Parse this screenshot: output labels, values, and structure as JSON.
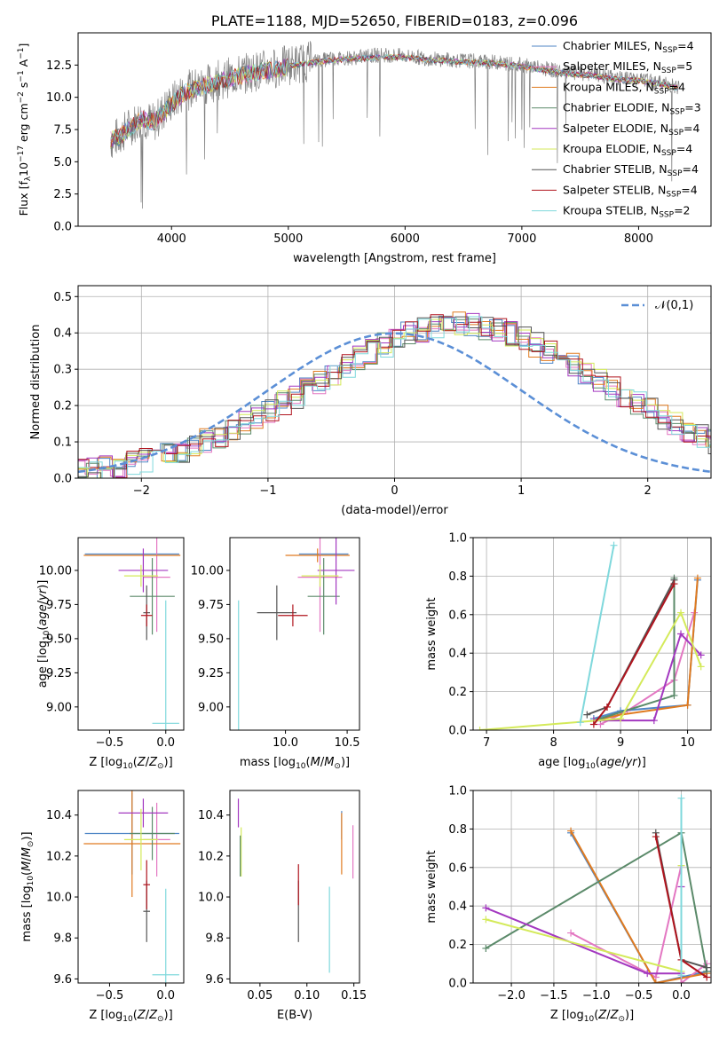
{
  "figure_title": "PLATE=1188, MJD=52650, FIBERID=0183, z=0.096",
  "colors": {
    "Chabrier MILES": "#4f86c6",
    "Salpeter MILES": "#e377c2",
    "Kroupa MILES": "#e07b20",
    "Chabrier ELODIE": "#5b8a6a",
    "Salpeter ELODIE": "#a338c0",
    "Kroupa ELODIE": "#d4ea5a",
    "Chabrier STELIB": "#555555",
    "Salpeter STELIB": "#b0141e",
    "Kroupa STELIB": "#7fd8dc"
  },
  "chart_data": [
    {
      "type": "line",
      "xlabel": "wavelength [Angstrom, rest frame]",
      "ylabel": "Flux [f_λ10^-17 erg cm^-2 s^-1 A^-1]",
      "xlim": [
        3200,
        8620
      ],
      "ylim": [
        0,
        15.0
      ],
      "xticks": [
        4000,
        5000,
        6000,
        7000,
        8000
      ],
      "yticks": [
        0.0,
        2.5,
        5.0,
        7.5,
        10.0,
        12.5
      ],
      "ytick_labels": [
        "0.0",
        "2.5",
        "5.0",
        "7.5",
        "10.0",
        "12.5"
      ],
      "grid": false,
      "legend_position": "right",
      "legend": [
        {
          "model": "Chabrier MILES",
          "label": "Chabrier MILES, N_SSP=4",
          "name": "Chabrier MILES",
          "sub": "SSP",
          "value": "=4"
        },
        {
          "model": "Salpeter MILES",
          "label": "Salpeter MILES, N_SSP=5",
          "name": "Salpeter MILES",
          "sub": "SSP",
          "value": "=5"
        },
        {
          "model": "Kroupa MILES",
          "label": "Kroupa MILES, N_SSP=4",
          "name": "Kroupa MILES",
          "sub": "SSP",
          "value": "=4"
        },
        {
          "model": "Chabrier ELODIE",
          "label": "Chabrier ELODIE, N_SSP=3",
          "name": "Chabrier ELODIE",
          "sub": "SSP",
          "value": "=3"
        },
        {
          "model": "Salpeter ELODIE",
          "label": "Salpeter ELODIE, N_SSP=4",
          "name": "Salpeter ELODIE",
          "sub": "SSP",
          "value": "=4"
        },
        {
          "model": "Kroupa ELODIE",
          "label": "Kroupa ELODIE, N_SSP=4",
          "name": "Kroupa ELODIE",
          "sub": "SSP",
          "value": "=4"
        },
        {
          "model": "Chabrier STELIB",
          "label": "Chabrier STELIB, N_SSP=4",
          "name": "Chabrier STELIB",
          "sub": "SSP",
          "value": "=4"
        },
        {
          "model": "Salpeter STELIB",
          "label": "Salpeter STELIB, N_SSP=4",
          "name": "Salpeter STELIB",
          "sub": "SSP",
          "value": "=4"
        },
        {
          "model": "Kroupa STELIB",
          "label": "Kroupa STELIB, N_SSP=2",
          "name": "Kroupa STELIB",
          "sub": "SSP",
          "value": "=2"
        }
      ],
      "observed_spectrum": {
        "color": "#808080",
        "x": [
          3480,
          3550,
          3650,
          3750,
          3850,
          3950,
          4100,
          4250,
          4400,
          4550,
          4700,
          4850,
          5000,
          5200,
          5400,
          5600,
          5800,
          6000,
          6200,
          6400,
          6600,
          6800,
          7000,
          7200,
          7400,
          7600,
          7800,
          8000,
          8200,
          8350
        ],
        "y": [
          6.6,
          7.0,
          7.8,
          8.4,
          8.0,
          9.2,
          10.4,
          10.9,
          11.3,
          11.7,
          12.0,
          12.2,
          12.5,
          12.8,
          13.0,
          13.1,
          13.3,
          13.2,
          13.0,
          12.9,
          12.8,
          12.7,
          12.5,
          12.2,
          11.9,
          11.8,
          11.5,
          11.4,
          11.1,
          10.8
        ]
      },
      "model_continuum": {
        "x": [
          3480,
          3550,
          3650,
          3750,
          3850,
          3950,
          4100,
          4250,
          4400,
          4550,
          4700,
          4850,
          5000,
          5200,
          5400,
          5600,
          5800,
          6000,
          6200,
          6400,
          6600,
          6800,
          7000,
          7200,
          7400,
          7600,
          7800,
          8000,
          8200,
          8350
        ],
        "y": [
          6.7,
          6.9,
          7.6,
          8.3,
          8.1,
          9.0,
          10.3,
          10.8,
          11.2,
          11.6,
          11.9,
          12.1,
          12.4,
          12.7,
          12.9,
          13.0,
          13.1,
          13.1,
          12.9,
          12.8,
          12.7,
          12.6,
          12.4,
          12.1,
          11.8,
          11.7,
          11.4,
          11.3,
          11.0,
          10.7
        ]
      }
    },
    {
      "type": "histogram",
      "xlabel": "(data-model)/error",
      "ylabel": "Normed distribution",
      "xlim": [
        -2.5,
        2.5
      ],
      "ylim": [
        0,
        0.53
      ],
      "xticks": [
        -2,
        -1,
        0,
        1,
        2
      ],
      "xtick_labels": [
        "−2",
        "−1",
        "0",
        "1",
        "2"
      ],
      "yticks": [
        0.0,
        0.1,
        0.2,
        0.3,
        0.4,
        0.5
      ],
      "ytick_labels": [
        "0.0",
        "0.1",
        "0.2",
        "0.3",
        "0.4",
        "0.5"
      ],
      "grid": true,
      "legend_position": "top-right",
      "legend_label": "𝒩(0,1)",
      "gaussian": {
        "mean": 0,
        "sigma": 1,
        "color": "#5b8fd6"
      },
      "bin_width": 0.1,
      "bin_start": -2.5,
      "shape": [
        0.018,
        0.022,
        0.027,
        0.033,
        0.04,
        0.048,
        0.056,
        0.066,
        0.077,
        0.089,
        0.102,
        0.117,
        0.133,
        0.149,
        0.167,
        0.186,
        0.205,
        0.225,
        0.246,
        0.267,
        0.288,
        0.309,
        0.33,
        0.349,
        0.367,
        0.383,
        0.397,
        0.408,
        0.416,
        0.422,
        0.424,
        0.422,
        0.416,
        0.408,
        0.397,
        0.383,
        0.367,
        0.349,
        0.33,
        0.309,
        0.288,
        0.267,
        0.246,
        0.225,
        0.205,
        0.186,
        0.167,
        0.149,
        0.133,
        0.117,
        0.102,
        0.089,
        0.077,
        0.066,
        0.056,
        0.048,
        0.04,
        0.033,
        0.027,
        0.022,
        0.018
      ]
    },
    {
      "type": "errorbar",
      "xlabel": "Z [log10(Z/Z⊙)]",
      "ylabel": "age [log10(age/yr)]",
      "xlim": [
        -0.78,
        0.16
      ],
      "ylim": [
        8.83,
        10.24
      ],
      "xticks": [
        -0.5,
        0.0
      ],
      "xtick_labels": [
        "−0.5",
        "0.0"
      ],
      "yticks": [
        9.0,
        9.25,
        9.5,
        9.75,
        10.0
      ],
      "ytick_labels": [
        "9.00",
        "9.25",
        "9.50",
        "9.75",
        "10.00"
      ],
      "grid": false,
      "points": [
        {
          "model": "Chabrier MILES",
          "x": -0.3,
          "xerr": 0.42,
          "y": 10.12,
          "yerr": 0.0
        },
        {
          "model": "Salpeter MILES",
          "x": -0.08,
          "xerr": 0.12,
          "y": 9.95,
          "yerr": 0.4
        },
        {
          "model": "Kroupa MILES",
          "x": -0.3,
          "xerr": 0.43,
          "y": 10.11,
          "yerr": 0.0
        },
        {
          "model": "Chabrier ELODIE",
          "x": -0.12,
          "xerr": 0.2,
          "y": 9.81,
          "yerr": 0.28
        },
        {
          "model": "Salpeter ELODIE",
          "x": -0.2,
          "xerr": 0.22,
          "y": 10.0,
          "yerr": 0.16
        },
        {
          "model": "Kroupa ELODIE",
          "x": -0.22,
          "xerr": 0.15,
          "y": 9.96,
          "yerr": 0.08
        },
        {
          "model": "Chabrier STELIB",
          "x": -0.17,
          "xerr": 0.03,
          "y": 9.69,
          "yerr": 0.2
        },
        {
          "model": "Salpeter STELIB",
          "x": -0.17,
          "xerr": 0.05,
          "y": 9.67,
          "yerr": 0.08
        },
        {
          "model": "Kroupa STELIB",
          "x": 0.0,
          "xerr": 0.12,
          "y": 8.88,
          "yerr": 0.9
        }
      ]
    },
    {
      "type": "errorbar",
      "xlabel": "mass [log10(M/M⊙)]",
      "ylabel": "",
      "xlim": [
        9.55,
        10.6
      ],
      "ylim": [
        8.83,
        10.24
      ],
      "xticks": [
        10.0,
        10.5
      ],
      "xtick_labels": [
        "10.0",
        "10.5"
      ],
      "yticks": [
        9.0,
        9.25,
        9.5,
        9.75,
        10.0
      ],
      "ytick_labels": [
        "9.00",
        "9.25",
        "9.50",
        "9.75",
        "10.00"
      ],
      "grid": false,
      "points": [
        {
          "model": "Chabrier MILES",
          "x": 10.31,
          "xerr": 0.2,
          "y": 10.12,
          "yerr": 0.0
        },
        {
          "model": "Salpeter MILES",
          "x": 10.28,
          "xerr": 0.18,
          "y": 9.95,
          "yerr": 0.4
        },
        {
          "model": "Kroupa MILES",
          "x": 10.26,
          "xerr": 0.26,
          "y": 10.11,
          "yerr": 0.05
        },
        {
          "model": "Chabrier ELODIE",
          "x": 10.31,
          "xerr": 0.13,
          "y": 9.81,
          "yerr": 0.28
        },
        {
          "model": "Salpeter ELODIE",
          "x": 10.41,
          "xerr": 0.15,
          "y": 10.0,
          "yerr": 0.25
        },
        {
          "model": "Kroupa ELODIE",
          "x": 10.28,
          "xerr": 0.15,
          "y": 9.96,
          "yerr": 0.08
        },
        {
          "model": "Chabrier STELIB",
          "x": 9.93,
          "xerr": 0.16,
          "y": 9.69,
          "yerr": 0.2
        },
        {
          "model": "Salpeter STELIB",
          "x": 10.06,
          "xerr": 0.12,
          "y": 9.67,
          "yerr": 0.08
        },
        {
          "model": "Kroupa STELIB",
          "x": 9.62,
          "xerr": 0.0,
          "y": 8.88,
          "yerr": 0.9
        }
      ]
    },
    {
      "type": "line",
      "xlabel": "age [log10(age/yr)]",
      "ylabel": "mass weight",
      "xlim": [
        6.8,
        10.35
      ],
      "ylim": [
        0,
        1.0
      ],
      "xticks": [
        7,
        8,
        9,
        10
      ],
      "xtick_labels": [
        "7",
        "8",
        "9",
        "10"
      ],
      "yticks": [
        0.0,
        0.2,
        0.4,
        0.6,
        0.8,
        1.0
      ],
      "ytick_labels": [
        "0.0",
        "0.2",
        "0.4",
        "0.6",
        "0.8",
        "1.0"
      ],
      "grid": true,
      "series": [
        {
          "model": "Chabrier MILES",
          "x": [
            8.6,
            9.0,
            10.0,
            10.15
          ],
          "y": [
            0.06,
            0.1,
            0.13,
            0.78
          ]
        },
        {
          "model": "Salpeter MILES",
          "x": [
            8.7,
            9.1,
            9.8,
            10.1
          ],
          "y": [
            0.03,
            0.1,
            0.26,
            0.61
          ]
        },
        {
          "model": "Kroupa MILES",
          "x": [
            8.6,
            9.0,
            10.0,
            10.15
          ],
          "y": [
            0.05,
            0.08,
            0.13,
            0.79
          ]
        },
        {
          "model": "Chabrier ELODIE",
          "x": [
            8.7,
            9.8,
            9.8
          ],
          "y": [
            0.06,
            0.18,
            0.79
          ]
        },
        {
          "model": "Salpeter ELODIE",
          "x": [
            8.6,
            9.5,
            9.9,
            10.2
          ],
          "y": [
            0.05,
            0.05,
            0.5,
            0.39
          ]
        },
        {
          "model": "Kroupa ELODIE",
          "x": [
            6.9,
            9.0,
            9.9,
            10.2
          ],
          "y": [
            0.0,
            0.06,
            0.61,
            0.33
          ]
        },
        {
          "model": "Chabrier STELIB",
          "x": [
            8.5,
            8.8,
            9.8
          ],
          "y": [
            0.08,
            0.12,
            0.78
          ]
        },
        {
          "model": "Salpeter STELIB",
          "x": [
            8.6,
            8.8,
            9.8
          ],
          "y": [
            0.03,
            0.12,
            0.76
          ]
        },
        {
          "model": "Kroupa STELIB",
          "x": [
            8.4,
            8.9
          ],
          "y": [
            0.04,
            0.96
          ]
        }
      ]
    },
    {
      "type": "errorbar",
      "xlabel": "Z [log10(Z/Z⊙)]",
      "ylabel": "mass [log10(M/M⊙)]",
      "xlim": [
        -0.78,
        0.16
      ],
      "ylim": [
        9.58,
        10.52
      ],
      "xticks": [
        -0.5,
        0.0
      ],
      "xtick_labels": [
        "−0.5",
        "0.0"
      ],
      "yticks": [
        9.6,
        9.8,
        10.0,
        10.2,
        10.4
      ],
      "ytick_labels": [
        "9.6",
        "9.8",
        "10.0",
        "10.2",
        "10.4"
      ],
      "grid": false,
      "points": [
        {
          "model": "Chabrier MILES",
          "x": -0.3,
          "xerr": 0.42,
          "y": 10.31,
          "yerr": 0.2
        },
        {
          "model": "Salpeter MILES",
          "x": -0.08,
          "xerr": 0.12,
          "y": 10.28,
          "yerr": 0.18
        },
        {
          "model": "Kroupa MILES",
          "x": -0.3,
          "xerr": 0.43,
          "y": 10.26,
          "yerr": 0.26
        },
        {
          "model": "Chabrier ELODIE",
          "x": -0.12,
          "xerr": 0.2,
          "y": 10.31,
          "yerr": 0.13
        },
        {
          "model": "Salpeter ELODIE",
          "x": -0.2,
          "xerr": 0.22,
          "y": 10.41,
          "yerr": 0.07
        },
        {
          "model": "Kroupa ELODIE",
          "x": -0.22,
          "xerr": 0.15,
          "y": 10.28,
          "yerr": 0.15
        },
        {
          "model": "Chabrier STELIB",
          "x": -0.17,
          "xerr": 0.03,
          "y": 9.93,
          "yerr": 0.15
        },
        {
          "model": "Salpeter STELIB",
          "x": -0.17,
          "xerr": 0.03,
          "y": 10.06,
          "yerr": 0.12
        },
        {
          "model": "Kroupa STELIB",
          "x": 0.0,
          "xerr": 0.12,
          "y": 9.62,
          "yerr": 0.42
        }
      ]
    },
    {
      "type": "errorbar",
      "xlabel": "E(B-V)",
      "ylabel": "",
      "xlim": [
        0.018,
        0.156
      ],
      "ylim": [
        9.58,
        10.52
      ],
      "xticks": [
        0.05,
        0.1,
        0.15
      ],
      "xtick_labels": [
        "0.05",
        "0.10",
        "0.15"
      ],
      "yticks": [
        9.6,
        9.8,
        10.0,
        10.2,
        10.4
      ],
      "ytick_labels": [
        "9.6",
        "9.8",
        "10.0",
        "10.2",
        "10.4"
      ],
      "grid": false,
      "points": [
        {
          "model": "Salpeter ELODIE",
          "x": 0.027,
          "xerr": 0.0,
          "y": 10.41,
          "yerr": 0.07
        },
        {
          "model": "Kroupa ELODIE",
          "x": 0.03,
          "xerr": 0.0,
          "y": 10.22,
          "yerr": 0.12
        },
        {
          "model": "Chabrier ELODIE",
          "x": 0.029,
          "xerr": 0.0,
          "y": 10.2,
          "yerr": 0.1
        },
        {
          "model": "Chabrier STELIB",
          "x": 0.091,
          "xerr": 0.0,
          "y": 9.93,
          "yerr": 0.15
        },
        {
          "model": "Salpeter STELIB",
          "x": 0.091,
          "xerr": 0.0,
          "y": 10.06,
          "yerr": 0.1
        },
        {
          "model": "Kroupa STELIB",
          "x": 0.124,
          "xerr": 0.0,
          "y": 9.84,
          "yerr": 0.21
        },
        {
          "model": "Chabrier MILES",
          "x": 0.137,
          "xerr": 0.0,
          "y": 10.35,
          "yerr": 0.07
        },
        {
          "model": "Kroupa MILES",
          "x": 0.137,
          "xerr": 0.0,
          "y": 10.26,
          "yerr": 0.15
        },
        {
          "model": "Salpeter MILES",
          "x": 0.149,
          "xerr": 0.0,
          "y": 10.22,
          "yerr": 0.13
        }
      ]
    },
    {
      "type": "line",
      "xlabel": "Z [log10(Z/Z⊙)]",
      "ylabel": "mass weight",
      "xlim": [
        -2.45,
        0.35
      ],
      "ylim": [
        0,
        1.0
      ],
      "xticks": [
        -2.0,
        -1.5,
        -1.0,
        -0.5,
        0.0
      ],
      "xtick_labels": [
        "−2.0",
        "−1.5",
        "−1.0",
        "−0.5",
        "0.0"
      ],
      "yticks": [
        0.0,
        0.2,
        0.4,
        0.6,
        0.8,
        1.0
      ],
      "ytick_labels": [
        "0.0",
        "0.2",
        "0.4",
        "0.6",
        "0.8",
        "1.0"
      ],
      "grid": true,
      "series": [
        {
          "model": "Chabrier MILES",
          "x": [
            -1.3,
            -0.3,
            0.3
          ],
          "y": [
            0.78,
            0.0,
            0.06
          ]
        },
        {
          "model": "Salpeter MILES",
          "x": [
            -1.3,
            -0.3,
            0.0,
            0.0,
            0.3
          ],
          "y": [
            0.26,
            0.03,
            0.61,
            0.0,
            0.1
          ]
        },
        {
          "model": "Kroupa MILES",
          "x": [
            -1.3,
            -0.3,
            0.3
          ],
          "y": [
            0.79,
            0.0,
            0.05
          ]
        },
        {
          "model": "Chabrier ELODIE",
          "x": [
            -2.3,
            0.0,
            0.3
          ],
          "y": [
            0.18,
            0.78,
            0.06
          ]
        },
        {
          "model": "Salpeter ELODIE",
          "x": [
            -2.3,
            -0.4,
            0.0,
            0.0
          ],
          "y": [
            0.39,
            0.05,
            0.05,
            0.5
          ]
        },
        {
          "model": "Kroupa ELODIE",
          "x": [
            -2.3,
            0.0,
            0.0
          ],
          "y": [
            0.33,
            0.06,
            0.61
          ]
        },
        {
          "model": "Chabrier STELIB",
          "x": [
            -0.3,
            0.0,
            0.3
          ],
          "y": [
            0.78,
            0.12,
            0.08
          ]
        },
        {
          "model": "Salpeter STELIB",
          "x": [
            -0.3,
            0.0,
            0.3
          ],
          "y": [
            0.76,
            0.12,
            0.03
          ]
        },
        {
          "model": "Kroupa STELIB",
          "x": [
            0.0,
            0.0
          ],
          "y": [
            0.04,
            0.96
          ]
        }
      ]
    }
  ]
}
